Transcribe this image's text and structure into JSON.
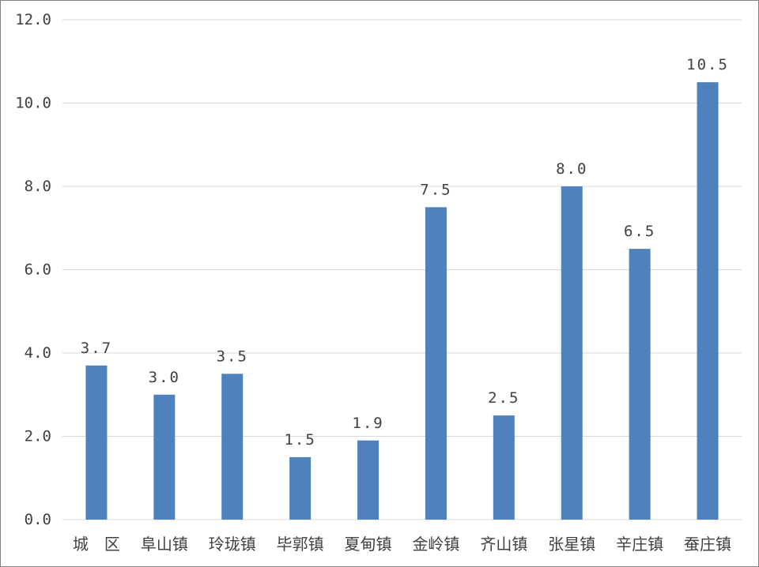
{
  "chart_data": {
    "type": "bar",
    "title": "",
    "xlabel": "",
    "ylabel": "",
    "categories": [
      "城　区",
      "阜山镇",
      "玲珑镇",
      "毕郭镇",
      "夏甸镇",
      "金岭镇",
      "齐山镇",
      "张星镇",
      "辛庄镇",
      "蚕庄镇"
    ],
    "values": [
      3.7,
      3.0,
      3.5,
      1.5,
      1.9,
      7.5,
      2.5,
      8.0,
      6.5,
      10.5
    ],
    "data_labels": [
      "3.7",
      "3.0",
      "3.5",
      "1.5",
      "1.9",
      "7.5",
      "2.5",
      "8.0",
      "6.5",
      "10.5"
    ],
    "ylim": [
      0,
      12
    ],
    "yticks": [
      0,
      2,
      4,
      6,
      8,
      10,
      12
    ],
    "ytick_labels": [
      "0.0",
      "2.0",
      "4.0",
      "6.0",
      "8.0",
      "10.0",
      "12.0"
    ],
    "grid": true,
    "legend": "none",
    "bar_color": "#4f81bd"
  }
}
